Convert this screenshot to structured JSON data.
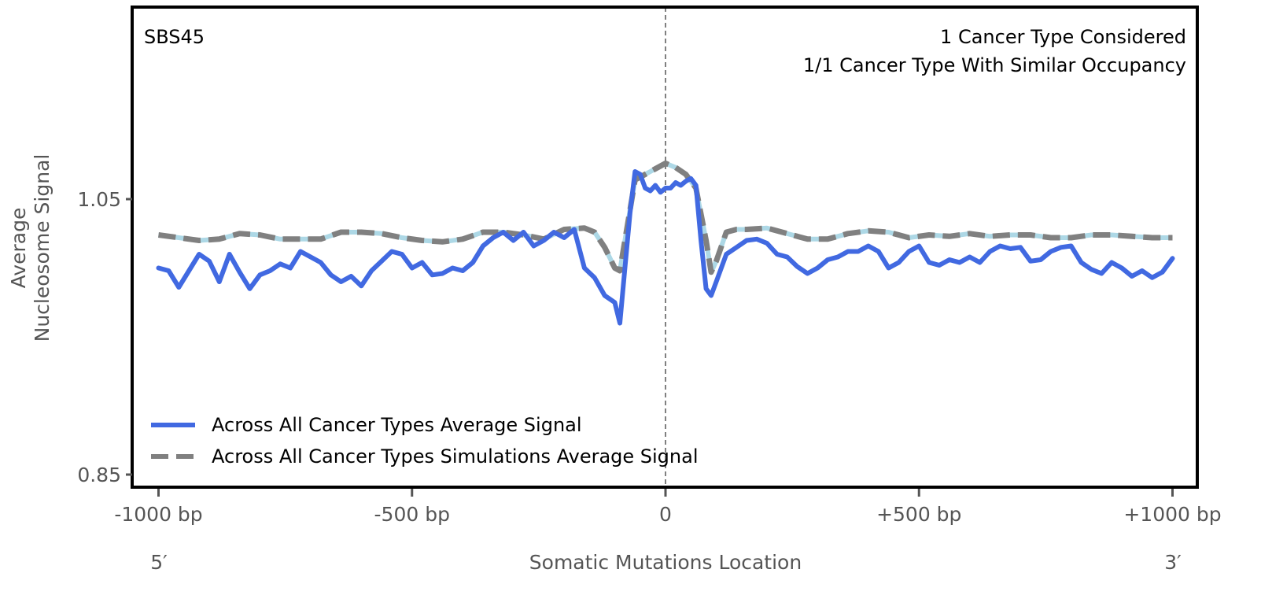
{
  "chart_data": {
    "type": "line",
    "title": "",
    "panel_label": "SBS45",
    "annotations": [
      "1 Cancer Type Considered",
      "1/1 Cancer Type With Similar Occupancy"
    ],
    "xlabel": "Somatic Mutations Location",
    "ylabel_lines": [
      "Average",
      "Nucleosome Signal"
    ],
    "xlim": [
      -1000,
      1000
    ],
    "ylim": [
      0.84,
      1.19
    ],
    "x_ticks": [
      -1000,
      -500,
      0,
      500,
      1000
    ],
    "x_tick_labels": [
      "-1000 bp",
      "-500 bp",
      "0",
      "+500 bp",
      "+1000 bp"
    ],
    "y_ticks": [
      1.05,
      0.85
    ],
    "y_tick_labels": [
      "1.05",
      "0.85"
    ],
    "strand_labels": {
      "left": "5′",
      "right": "3′"
    },
    "reference_line": {
      "x": 0,
      "style": "dashed",
      "color": "#808080"
    },
    "grid": false,
    "legend": {
      "placement": "lower-left",
      "entries": [
        {
          "label": "Across All Cancer Types Average Signal",
          "style": "solid",
          "color": "#4169E1"
        },
        {
          "label": "Across All Cancer Types Simulations Average Signal",
          "style": "dashed",
          "color": "#808080"
        }
      ]
    },
    "series": [
      {
        "name": "Across All Cancer Types Average Signal",
        "color": "#4169E1",
        "style": "solid",
        "x": [
          -1000,
          -980,
          -960,
          -940,
          -920,
          -900,
          -880,
          -860,
          -840,
          -820,
          -800,
          -780,
          -760,
          -740,
          -720,
          -700,
          -680,
          -660,
          -640,
          -620,
          -600,
          -580,
          -560,
          -540,
          -520,
          -500,
          -480,
          -460,
          -440,
          -420,
          -400,
          -380,
          -360,
          -340,
          -320,
          -300,
          -280,
          -260,
          -240,
          -220,
          -200,
          -180,
          -160,
          -140,
          -120,
          -100,
          -90,
          -80,
          -70,
          -60,
          -50,
          -40,
          -30,
          -20,
          -10,
          0,
          10,
          20,
          30,
          40,
          50,
          60,
          70,
          80,
          90,
          100,
          120,
          140,
          160,
          180,
          200,
          220,
          240,
          260,
          280,
          300,
          320,
          340,
          360,
          380,
          400,
          420,
          440,
          460,
          480,
          500,
          520,
          540,
          560,
          580,
          600,
          620,
          640,
          660,
          680,
          700,
          720,
          740,
          760,
          780,
          800,
          820,
          840,
          860,
          880,
          900,
          920,
          940,
          960,
          980,
          1000
        ],
        "values": [
          1.0,
          0.998,
          0.986,
          0.998,
          1.01,
          1.005,
          0.99,
          1.01,
          0.997,
          0.985,
          0.995,
          0.998,
          1.003,
          1.0,
          1.012,
          1.008,
          1.004,
          0.995,
          0.99,
          0.994,
          0.987,
          0.998,
          1.005,
          1.012,
          1.01,
          1.0,
          1.004,
          0.995,
          0.996,
          1.0,
          0.998,
          1.004,
          1.016,
          1.022,
          1.026,
          1.02,
          1.026,
          1.016,
          1.02,
          1.026,
          1.022,
          1.028,
          1.0,
          0.993,
          0.98,
          0.975,
          0.96,
          1.0,
          1.04,
          1.07,
          1.068,
          1.058,
          1.056,
          1.06,
          1.055,
          1.058,
          1.058,
          1.062,
          1.06,
          1.063,
          1.065,
          1.06,
          1.02,
          0.985,
          0.98,
          0.99,
          1.01,
          1.015,
          1.02,
          1.021,
          1.018,
          1.01,
          1.008,
          1.001,
          0.996,
          1.0,
          1.006,
          1.008,
          1.012,
          1.012,
          1.016,
          1.012,
          1.0,
          1.004,
          1.012,
          1.016,
          1.004,
          1.002,
          1.006,
          1.004,
          1.008,
          1.004,
          1.012,
          1.016,
          1.014,
          1.015,
          1.005,
          1.006,
          1.012,
          1.015,
          1.016,
          1.004,
          0.999,
          0.996,
          1.004,
          1.0,
          0.994,
          0.998,
          0.993,
          0.997,
          1.007
        ]
      },
      {
        "name": "Across All Cancer Types Simulations Average Signal",
        "color": "#808080",
        "underlay_color": "#ADD8E6",
        "style": "dashed",
        "x": [
          -1000,
          -960,
          -920,
          -880,
          -840,
          -800,
          -760,
          -720,
          -680,
          -640,
          -600,
          -560,
          -520,
          -480,
          -440,
          -400,
          -360,
          -320,
          -280,
          -240,
          -200,
          -160,
          -140,
          -120,
          -100,
          -90,
          -80,
          -60,
          -40,
          -20,
          0,
          20,
          40,
          60,
          80,
          90,
          100,
          120,
          140,
          160,
          200,
          240,
          280,
          320,
          360,
          400,
          440,
          480,
          520,
          560,
          600,
          640,
          680,
          720,
          760,
          800,
          840,
          880,
          920,
          960,
          1000
        ],
        "values": [
          1.024,
          1.022,
          1.02,
          1.021,
          1.025,
          1.024,
          1.021,
          1.021,
          1.021,
          1.026,
          1.026,
          1.025,
          1.022,
          1.02,
          1.019,
          1.021,
          1.026,
          1.026,
          1.024,
          1.021,
          1.028,
          1.029,
          1.026,
          1.015,
          1.0,
          0.998,
          1.02,
          1.064,
          1.068,
          1.072,
          1.076,
          1.073,
          1.068,
          1.058,
          1.02,
          0.997,
          1.005,
          1.026,
          1.028,
          1.028,
          1.029,
          1.025,
          1.021,
          1.021,
          1.025,
          1.027,
          1.026,
          1.022,
          1.024,
          1.023,
          1.025,
          1.023,
          1.024,
          1.024,
          1.022,
          1.022,
          1.024,
          1.024,
          1.023,
          1.022,
          1.022
        ]
      }
    ]
  }
}
